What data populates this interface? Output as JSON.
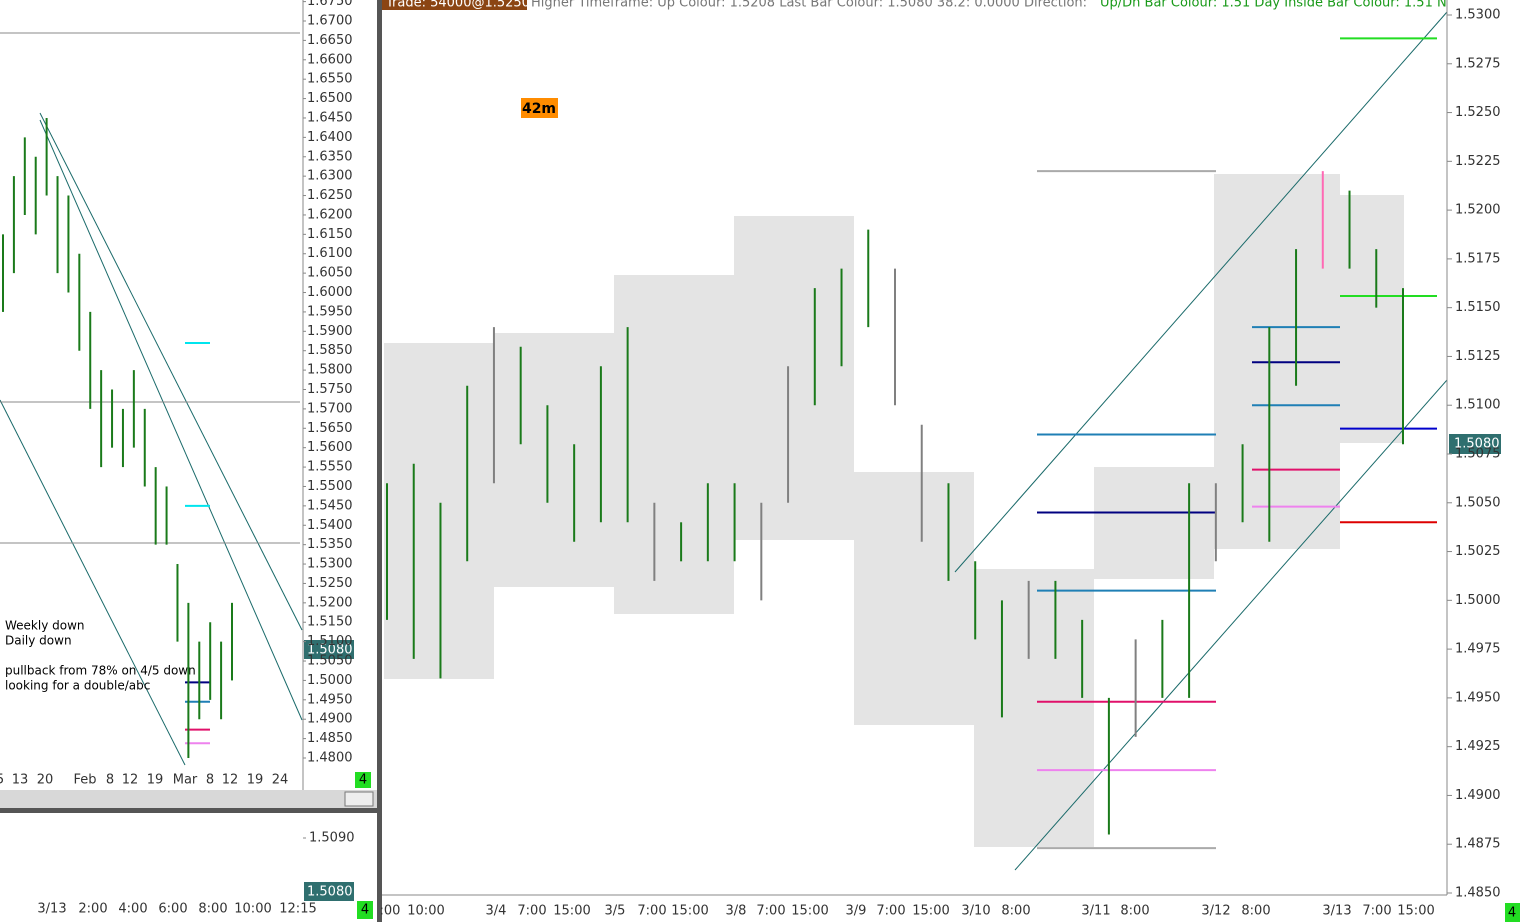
{
  "header": {
    "trade": "Trade: 54000@1.5250",
    "info": "Higher Timeframe:  Up Colour: 1.5208   Last Bar Colour: 1.5080   38.2: 0.0000   Direction:",
    "info_green": "Up/Dn Bar Colour: 1.51   Day Inside Bar Colour: 1.51   N"
  },
  "main": {
    "timeframe_badge": "42m",
    "price_badge": "1.5080",
    "corner_badge": "4",
    "ylim": [
      1.485,
      1.53
    ],
    "yticks": [
      {
        "value": 1.53,
        "label": "1.5300"
      },
      {
        "value": 1.5275,
        "label": "1.5275"
      },
      {
        "value": 1.525,
        "label": "1.5250"
      },
      {
        "value": 1.5225,
        "label": "1.5225"
      },
      {
        "value": 1.52,
        "label": "1.5200"
      },
      {
        "value": 1.5175,
        "label": "1.5175"
      },
      {
        "value": 1.515,
        "label": "1.5150"
      },
      {
        "value": 1.5125,
        "label": "1.5125"
      },
      {
        "value": 1.51,
        "label": "1.5100"
      },
      {
        "value": 1.5075,
        "label": "1.5075"
      },
      {
        "value": 1.505,
        "label": "1.5050"
      },
      {
        "value": 1.5025,
        "label": "1.5025"
      },
      {
        "value": 1.5,
        "label": "1.5000"
      },
      {
        "value": 1.4975,
        "label": "1.4975"
      },
      {
        "value": 1.495,
        "label": "1.4950"
      },
      {
        "value": 1.4925,
        "label": "1.4925"
      },
      {
        "value": 1.49,
        "label": "1.4900"
      },
      {
        "value": 1.4875,
        "label": "1.4875"
      },
      {
        "value": 1.485,
        "label": "1.4850"
      }
    ],
    "xlabels": [
      ":00",
      "10:00",
      "3/4",
      "7:00",
      "15:00",
      "3/5",
      "7:00",
      "15:00",
      "3/8",
      "7:00",
      "15:00",
      "3/9",
      "7:00",
      "15:00",
      "3/10",
      "8:00",
      "3/11",
      "8:00",
      "3/12",
      "8:00",
      "3/13",
      "7:00",
      "15:00"
    ],
    "bars": [
      {
        "high": 1.506,
        "low": 1.499,
        "color": "#1a7a1a"
      },
      {
        "high": 1.507,
        "low": 1.497,
        "color": "#1a7a1a"
      },
      {
        "high": 1.505,
        "low": 1.496,
        "color": "#1a7a1a"
      },
      {
        "high": 1.511,
        "low": 1.502,
        "color": "#1a7a1a"
      },
      {
        "high": 1.514,
        "low": 1.506,
        "color": "#808080"
      },
      {
        "high": 1.513,
        "low": 1.508,
        "color": "#1a7a1a"
      },
      {
        "high": 1.51,
        "low": 1.505,
        "color": "#1a7a1a"
      },
      {
        "high": 1.508,
        "low": 1.503,
        "color": "#1a7a1a"
      },
      {
        "high": 1.512,
        "low": 1.504,
        "color": "#1a7a1a"
      },
      {
        "high": 1.514,
        "low": 1.504,
        "color": "#1a7a1a"
      },
      {
        "high": 1.505,
        "low": 1.501,
        "color": "#808080"
      },
      {
        "high": 1.504,
        "low": 1.502,
        "color": "#1a7a1a"
      },
      {
        "high": 1.506,
        "low": 1.502,
        "color": "#1a7a1a"
      },
      {
        "high": 1.506,
        "low": 1.502,
        "color": "#1a7a1a"
      },
      {
        "high": 1.505,
        "low": 1.5,
        "color": "#808080"
      },
      {
        "high": 1.512,
        "low": 1.505,
        "color": "#808080"
      },
      {
        "high": 1.516,
        "low": 1.51,
        "color": "#1a7a1a"
      },
      {
        "high": 1.517,
        "low": 1.512,
        "color": "#1a7a1a"
      },
      {
        "high": 1.519,
        "low": 1.514,
        "color": "#1a7a1a"
      },
      {
        "high": 1.517,
        "low": 1.51,
        "color": "#808080"
      },
      {
        "high": 1.509,
        "low": 1.503,
        "color": "#808080"
      },
      {
        "high": 1.506,
        "low": 1.501,
        "color": "#1a7a1a"
      },
      {
        "high": 1.502,
        "low": 1.498,
        "color": "#1a7a1a"
      },
      {
        "high": 1.5,
        "low": 1.494,
        "color": "#1a7a1a"
      },
      {
        "high": 1.501,
        "low": 1.497,
        "color": "#808080"
      },
      {
        "high": 1.501,
        "low": 1.497,
        "color": "#1a7a1a"
      },
      {
        "high": 1.499,
        "low": 1.495,
        "color": "#1a7a1a"
      },
      {
        "high": 1.495,
        "low": 1.488,
        "color": "#1a7a1a"
      },
      {
        "high": 1.498,
        "low": 1.493,
        "color": "#808080"
      },
      {
        "high": 1.499,
        "low": 1.495,
        "color": "#1a7a1a"
      },
      {
        "high": 1.506,
        "low": 1.495,
        "color": "#1a7a1a"
      },
      {
        "high": 1.506,
        "low": 1.502,
        "color": "#808080"
      },
      {
        "high": 1.508,
        "low": 1.504,
        "color": "#1a7a1a"
      },
      {
        "high": 1.514,
        "low": 1.503,
        "color": "#1a7a1a"
      },
      {
        "high": 1.518,
        "low": 1.511,
        "color": "#1a7a1a"
      },
      {
        "high": 1.522,
        "low": 1.517,
        "color": "#ff69b4"
      },
      {
        "high": 1.521,
        "low": 1.517,
        "color": "#1a7a1a"
      },
      {
        "high": 1.518,
        "low": 1.515,
        "color": "#1a7a1a"
      },
      {
        "high": 1.516,
        "low": 1.508,
        "color": "#1a7a1a"
      }
    ],
    "levels": [
      {
        "price": 1.522,
        "color": "#aaaaaa",
        "side": "left"
      },
      {
        "price": 1.5085,
        "color": "#1f7fb5",
        "side": "left"
      },
      {
        "price": 1.5045,
        "color": "#000080",
        "side": "left"
      },
      {
        "price": 1.5005,
        "color": "#1f7fb5",
        "side": "left"
      },
      {
        "price": 1.4948,
        "color": "#e0106a",
        "side": "left"
      },
      {
        "price": 1.4913,
        "color": "#ee82ee",
        "side": "left"
      },
      {
        "price": 1.4873,
        "color": "#aaaaaa",
        "side": "left"
      },
      {
        "price": 1.514,
        "color": "#1f7fb5",
        "side": "mid"
      },
      {
        "price": 1.5122,
        "color": "#000080",
        "side": "mid"
      },
      {
        "price": 1.51,
        "color": "#1f7fb5",
        "side": "mid"
      },
      {
        "price": 1.5067,
        "color": "#e0106a",
        "side": "mid"
      },
      {
        "price": 1.5048,
        "color": "#ee82ee",
        "side": "mid"
      },
      {
        "price": 1.5288,
        "color": "#22dd22",
        "side": "right"
      },
      {
        "price": 1.5156,
        "color": "#22dd22",
        "side": "right"
      },
      {
        "price": 1.5088,
        "color": "#0000cc",
        "side": "right"
      },
      {
        "price": 1.504,
        "color": "#dd0000",
        "side": "right"
      }
    ]
  },
  "left": {
    "price_badge": "1.5080",
    "corner_badge": "4",
    "notes": [
      "Weekly down",
      "Daily down",
      "pullback from 78% on 4/5 down",
      "looking for a double/abc"
    ],
    "ylim": [
      1.4775,
      1.6755
    ],
    "yticks": [
      {
        "value": 1.675,
        "label": "1.6750"
      },
      {
        "value": 1.67,
        "label": "1.6700"
      },
      {
        "value": 1.665,
        "label": "1.6650"
      },
      {
        "value": 1.66,
        "label": "1.6600"
      },
      {
        "value": 1.655,
        "label": "1.6550"
      },
      {
        "value": 1.65,
        "label": "1.6500"
      },
      {
        "value": 1.645,
        "label": "1.6450"
      },
      {
        "value": 1.64,
        "label": "1.6400"
      },
      {
        "value": 1.635,
        "label": "1.6350"
      },
      {
        "value": 1.63,
        "label": "1.6300"
      },
      {
        "value": 1.625,
        "label": "1.6250"
      },
      {
        "value": 1.62,
        "label": "1.6200"
      },
      {
        "value": 1.615,
        "label": "1.6150"
      },
      {
        "value": 1.61,
        "label": "1.6100"
      },
      {
        "value": 1.605,
        "label": "1.6050"
      },
      {
        "value": 1.6,
        "label": "1.6000"
      },
      {
        "value": 1.595,
        "label": "1.5950"
      },
      {
        "value": 1.59,
        "label": "1.5900"
      },
      {
        "value": 1.585,
        "label": "1.5850"
      },
      {
        "value": 1.58,
        "label": "1.5800"
      },
      {
        "value": 1.575,
        "label": "1.5750"
      },
      {
        "value": 1.57,
        "label": "1.5700"
      },
      {
        "value": 1.565,
        "label": "1.5650"
      },
      {
        "value": 1.56,
        "label": "1.5600"
      },
      {
        "value": 1.555,
        "label": "1.5550"
      },
      {
        "value": 1.55,
        "label": "1.5500"
      },
      {
        "value": 1.545,
        "label": "1.5450"
      },
      {
        "value": 1.54,
        "label": "1.5400"
      },
      {
        "value": 1.535,
        "label": "1.5350"
      },
      {
        "value": 1.53,
        "label": "1.5300"
      },
      {
        "value": 1.525,
        "label": "1.5250"
      },
      {
        "value": 1.52,
        "label": "1.5200"
      },
      {
        "value": 1.515,
        "label": "1.5150"
      },
      {
        "value": 1.51,
        "label": "1.5100"
      },
      {
        "value": 1.505,
        "label": "1.5050"
      },
      {
        "value": 1.5,
        "label": "1.5000"
      },
      {
        "value": 1.495,
        "label": "1.4950"
      },
      {
        "value": 1.49,
        "label": "1.4900"
      },
      {
        "value": 1.485,
        "label": "1.4850"
      },
      {
        "value": 1.48,
        "label": "1.4800"
      }
    ],
    "xlabels": [
      "5",
      "13",
      "20",
      "Feb",
      "8",
      "12",
      "19",
      "Mar",
      "8",
      "12",
      "19",
      "24"
    ],
    "bars": [
      {
        "high": 1.615,
        "low": 1.595
      },
      {
        "high": 1.63,
        "low": 1.605
      },
      {
        "high": 1.64,
        "low": 1.62
      },
      {
        "high": 1.635,
        "low": 1.615
      },
      {
        "high": 1.645,
        "low": 1.625
      },
      {
        "high": 1.63,
        "low": 1.605
      },
      {
        "high": 1.625,
        "low": 1.6
      },
      {
        "high": 1.61,
        "low": 1.585
      },
      {
        "high": 1.595,
        "low": 1.57
      },
      {
        "high": 1.58,
        "low": 1.555
      },
      {
        "high": 1.575,
        "low": 1.56
      },
      {
        "high": 1.57,
        "low": 1.555
      },
      {
        "high": 1.58,
        "low": 1.56
      },
      {
        "high": 1.57,
        "low": 1.55
      },
      {
        "high": 1.555,
        "low": 1.535
      },
      {
        "high": 1.55,
        "low": 1.535
      },
      {
        "high": 1.53,
        "low": 1.51
      },
      {
        "high": 1.52,
        "low": 1.48
      },
      {
        "high": 1.51,
        "low": 1.49
      },
      {
        "high": 1.515,
        "low": 1.495
      },
      {
        "high": 1.51,
        "low": 1.49
      },
      {
        "high": 1.52,
        "low": 1.5
      }
    ],
    "levels": [
      {
        "price": 1.587,
        "color": "#00e5ee"
      },
      {
        "price": 1.545,
        "color": "#00e5ee"
      },
      {
        "price": 1.4995,
        "color": "#000080"
      },
      {
        "price": 1.4945,
        "color": "#1f7fb5"
      },
      {
        "price": 1.4873,
        "color": "#e0106a"
      },
      {
        "price": 1.4838,
        "color": "#ee82ee"
      }
    ]
  },
  "lower": {
    "ytick": {
      "value": 1.509,
      "label": "1.5090"
    },
    "price_badge": "1.5080",
    "corner_badge": "4",
    "xlabels": [
      "3/13",
      "2:00",
      "4:00",
      "6:00",
      "8:00",
      "10:00",
      "12:15"
    ]
  }
}
